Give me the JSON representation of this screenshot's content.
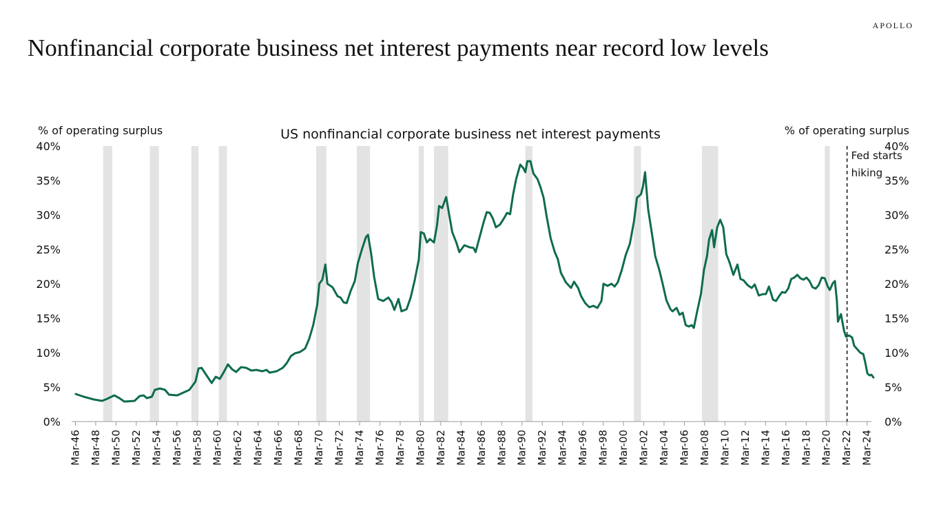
{
  "brand": "APOLLO",
  "headline": "Nonfinancial corporate business net interest payments near record low levels",
  "chart_data": {
    "type": "line",
    "title": "US nonfinancial corporate business net interest payments",
    "ylabel_left": "% of operating surplus",
    "ylabel_right": "% of operating surplus",
    "ylim": [
      0,
      40
    ],
    "yticks": [
      "0%",
      "5%",
      "10%",
      "15%",
      "20%",
      "25%",
      "30%",
      "35%",
      "40%"
    ],
    "xticks": [
      "Mar-46",
      "Mar-48",
      "Mar-50",
      "Mar-52",
      "Mar-54",
      "Mar-56",
      "Mar-58",
      "Mar-60",
      "Mar-62",
      "Mar-64",
      "Mar-66",
      "Mar-68",
      "Mar-70",
      "Mar-72",
      "Mar-74",
      "Mar-76",
      "Mar-78",
      "Mar-80",
      "Mar-82",
      "Mar-84",
      "Mar-86",
      "Mar-88",
      "Mar-90",
      "Mar-92",
      "Mar-94",
      "Mar-96",
      "Mar-98",
      "Mar-00",
      "Mar-02",
      "Mar-04",
      "Mar-06",
      "Mar-08",
      "Mar-10",
      "Mar-12",
      "Mar-14",
      "Mar-16",
      "Mar-18",
      "Mar-20",
      "Mar-22",
      "Mar-24"
    ],
    "xlim": [
      1945.8,
      2024.6
    ],
    "grid": false,
    "line_color": "#0e6b4f",
    "recession_color": "#e3e3e3",
    "recessions": [
      [
        1948.9,
        1949.8
      ],
      [
        1953.5,
        1954.4
      ],
      [
        1957.6,
        1958.3
      ],
      [
        1960.3,
        1961.1
      ],
      [
        1969.9,
        1970.9
      ],
      [
        1973.9,
        1975.2
      ],
      [
        1980.0,
        1980.5
      ],
      [
        1981.5,
        1982.9
      ],
      [
        1990.5,
        1991.2
      ],
      [
        2001.2,
        2001.9
      ],
      [
        2007.9,
        2009.5
      ],
      [
        2020.0,
        2020.5
      ]
    ],
    "annotation": {
      "x": 2022.2,
      "lines": [
        "Fed starts",
        "hiking"
      ]
    },
    "series": [
      {
        "values": [
          [
            1946.2,
            4.0
          ],
          [
            1947.0,
            3.6
          ],
          [
            1948.0,
            3.2
          ],
          [
            1948.8,
            3.0
          ],
          [
            1949.3,
            3.3
          ],
          [
            1950.0,
            3.8
          ],
          [
            1950.5,
            3.4
          ],
          [
            1951.0,
            2.9
          ],
          [
            1952.0,
            3.0
          ],
          [
            1952.5,
            3.7
          ],
          [
            1952.9,
            3.8
          ],
          [
            1953.2,
            3.4
          ],
          [
            1953.7,
            3.6
          ],
          [
            1954.0,
            4.6
          ],
          [
            1954.5,
            4.8
          ],
          [
            1955.0,
            4.6
          ],
          [
            1955.4,
            3.9
          ],
          [
            1956.2,
            3.8
          ],
          [
            1956.8,
            4.2
          ],
          [
            1957.4,
            4.6
          ],
          [
            1958.0,
            5.8
          ],
          [
            1958.3,
            7.7
          ],
          [
            1958.6,
            7.8
          ],
          [
            1959.0,
            6.9
          ],
          [
            1959.6,
            5.6
          ],
          [
            1960.0,
            6.5
          ],
          [
            1960.4,
            6.2
          ],
          [
            1960.8,
            7.2
          ],
          [
            1961.2,
            8.3
          ],
          [
            1961.6,
            7.6
          ],
          [
            1962.0,
            7.2
          ],
          [
            1962.5,
            7.9
          ],
          [
            1963.0,
            7.8
          ],
          [
            1963.5,
            7.4
          ],
          [
            1964.0,
            7.5
          ],
          [
            1964.6,
            7.3
          ],
          [
            1965.0,
            7.5
          ],
          [
            1965.3,
            7.1
          ],
          [
            1966.0,
            7.3
          ],
          [
            1966.6,
            7.8
          ],
          [
            1967.0,
            8.5
          ],
          [
            1967.4,
            9.5
          ],
          [
            1967.8,
            9.9
          ],
          [
            1968.3,
            10.1
          ],
          [
            1968.8,
            10.6
          ],
          [
            1969.2,
            12.0
          ],
          [
            1969.6,
            14.0
          ],
          [
            1970.0,
            17.0
          ],
          [
            1970.2,
            20.0
          ],
          [
            1970.5,
            20.6
          ],
          [
            1970.8,
            22.8
          ],
          [
            1971.0,
            20.0
          ],
          [
            1971.5,
            19.5
          ],
          [
            1972.0,
            18.2
          ],
          [
            1972.3,
            18.0
          ],
          [
            1972.6,
            17.3
          ],
          [
            1972.9,
            17.2
          ],
          [
            1973.3,
            19.0
          ],
          [
            1973.7,
            20.4
          ],
          [
            1974.0,
            23.0
          ],
          [
            1974.4,
            25.0
          ],
          [
            1974.8,
            26.8
          ],
          [
            1975.0,
            27.1
          ],
          [
            1975.3,
            24.5
          ],
          [
            1975.6,
            21.0
          ],
          [
            1976.0,
            17.8
          ],
          [
            1976.5,
            17.5
          ],
          [
            1977.0,
            18.0
          ],
          [
            1977.3,
            17.4
          ],
          [
            1977.6,
            16.2
          ],
          [
            1978.0,
            17.8
          ],
          [
            1978.3,
            16.0
          ],
          [
            1978.8,
            16.3
          ],
          [
            1979.2,
            18.0
          ],
          [
            1979.6,
            20.5
          ],
          [
            1980.0,
            23.5
          ],
          [
            1980.2,
            27.5
          ],
          [
            1980.5,
            27.3
          ],
          [
            1980.8,
            26.0
          ],
          [
            1981.1,
            26.5
          ],
          [
            1981.5,
            26.0
          ],
          [
            1981.8,
            28.5
          ],
          [
            1982.0,
            31.3
          ],
          [
            1982.3,
            31.0
          ],
          [
            1982.7,
            32.6
          ],
          [
            1983.0,
            30.0
          ],
          [
            1983.3,
            27.5
          ],
          [
            1983.7,
            26.0
          ],
          [
            1984.0,
            24.6
          ],
          [
            1984.5,
            25.6
          ],
          [
            1985.0,
            25.3
          ],
          [
            1985.4,
            25.2
          ],
          [
            1985.6,
            24.6
          ],
          [
            1986.0,
            26.8
          ],
          [
            1986.4,
            29.0
          ],
          [
            1986.7,
            30.4
          ],
          [
            1987.0,
            30.3
          ],
          [
            1987.3,
            29.5
          ],
          [
            1987.6,
            28.2
          ],
          [
            1988.0,
            28.6
          ],
          [
            1988.4,
            29.5
          ],
          [
            1988.7,
            30.3
          ],
          [
            1989.0,
            30.1
          ],
          [
            1989.3,
            33.0
          ],
          [
            1989.6,
            35.2
          ],
          [
            1990.0,
            37.3
          ],
          [
            1990.3,
            36.8
          ],
          [
            1990.5,
            36.2
          ],
          [
            1990.7,
            37.8
          ],
          [
            1991.0,
            37.8
          ],
          [
            1991.3,
            36.0
          ],
          [
            1991.7,
            35.2
          ],
          [
            1992.0,
            34.0
          ],
          [
            1992.3,
            32.5
          ],
          [
            1992.6,
            29.8
          ],
          [
            1993.0,
            26.6
          ],
          [
            1993.4,
            24.6
          ],
          [
            1993.7,
            23.6
          ],
          [
            1994.0,
            21.6
          ],
          [
            1994.5,
            20.2
          ],
          [
            1995.0,
            19.4
          ],
          [
            1995.3,
            20.3
          ],
          [
            1995.7,
            19.4
          ],
          [
            1996.0,
            18.2
          ],
          [
            1996.4,
            17.2
          ],
          [
            1996.8,
            16.6
          ],
          [
            1997.2,
            16.8
          ],
          [
            1997.6,
            16.5
          ],
          [
            1998.0,
            17.5
          ],
          [
            1998.2,
            20.0
          ],
          [
            1998.6,
            19.7
          ],
          [
            1999.0,
            20.0
          ],
          [
            1999.3,
            19.6
          ],
          [
            1999.6,
            20.2
          ],
          [
            2000.0,
            22.0
          ],
          [
            2000.4,
            24.2
          ],
          [
            2000.8,
            25.8
          ],
          [
            2001.2,
            29.0
          ],
          [
            2001.5,
            32.5
          ],
          [
            2001.9,
            33.0
          ],
          [
            2002.1,
            34.2
          ],
          [
            2002.3,
            36.2
          ],
          [
            2002.6,
            30.8
          ],
          [
            2003.0,
            27.0
          ],
          [
            2003.3,
            24.0
          ],
          [
            2003.7,
            22.0
          ],
          [
            2004.0,
            20.2
          ],
          [
            2004.4,
            17.6
          ],
          [
            2004.8,
            16.3
          ],
          [
            2005.0,
            16.0
          ],
          [
            2005.4,
            16.5
          ],
          [
            2005.7,
            15.5
          ],
          [
            2006.0,
            15.8
          ],
          [
            2006.3,
            14.0
          ],
          [
            2006.6,
            13.8
          ],
          [
            2006.9,
            14.0
          ],
          [
            2007.1,
            13.6
          ],
          [
            2007.4,
            15.8
          ],
          [
            2007.8,
            18.5
          ],
          [
            2008.1,
            22.0
          ],
          [
            2008.4,
            24.0
          ],
          [
            2008.6,
            26.4
          ],
          [
            2008.9,
            27.8
          ],
          [
            2009.1,
            25.3
          ],
          [
            2009.4,
            28.2
          ],
          [
            2009.7,
            29.3
          ],
          [
            2010.0,
            28.2
          ],
          [
            2010.3,
            24.3
          ],
          [
            2010.6,
            23.2
          ],
          [
            2011.0,
            21.3
          ],
          [
            2011.4,
            22.8
          ],
          [
            2011.7,
            20.7
          ],
          [
            2012.0,
            20.5
          ],
          [
            2012.4,
            19.8
          ],
          [
            2012.8,
            19.4
          ],
          [
            2013.1,
            19.9
          ],
          [
            2013.5,
            18.3
          ],
          [
            2013.9,
            18.5
          ],
          [
            2014.2,
            18.5
          ],
          [
            2014.5,
            19.6
          ],
          [
            2014.9,
            17.7
          ],
          [
            2015.2,
            17.5
          ],
          [
            2015.5,
            18.2
          ],
          [
            2015.8,
            18.8
          ],
          [
            2016.1,
            18.7
          ],
          [
            2016.4,
            19.3
          ],
          [
            2016.7,
            20.7
          ],
          [
            2017.0,
            20.9
          ],
          [
            2017.3,
            21.3
          ],
          [
            2017.6,
            20.8
          ],
          [
            2017.9,
            20.6
          ],
          [
            2018.2,
            20.9
          ],
          [
            2018.5,
            20.4
          ],
          [
            2018.8,
            19.5
          ],
          [
            2019.1,
            19.3
          ],
          [
            2019.4,
            19.8
          ],
          [
            2019.7,
            20.9
          ],
          [
            2020.0,
            20.8
          ],
          [
            2020.3,
            19.6
          ],
          [
            2020.5,
            19.1
          ],
          [
            2020.8,
            20.1
          ],
          [
            2021.0,
            20.4
          ],
          [
            2021.2,
            17.5
          ],
          [
            2021.3,
            14.5
          ],
          [
            2021.6,
            15.6
          ],
          [
            2021.9,
            13.2
          ],
          [
            2022.1,
            12.3
          ],
          [
            2022.4,
            12.5
          ],
          [
            2022.7,
            12.2
          ],
          [
            2022.9,
            11.0
          ],
          [
            2023.2,
            10.5
          ],
          [
            2023.5,
            10.0
          ],
          [
            2023.8,
            9.8
          ],
          [
            2024.0,
            8.5
          ],
          [
            2024.2,
            7.0
          ],
          [
            2024.4,
            6.7
          ],
          [
            2024.6,
            6.8
          ],
          [
            2024.8,
            6.4
          ]
        ]
      }
    ]
  }
}
